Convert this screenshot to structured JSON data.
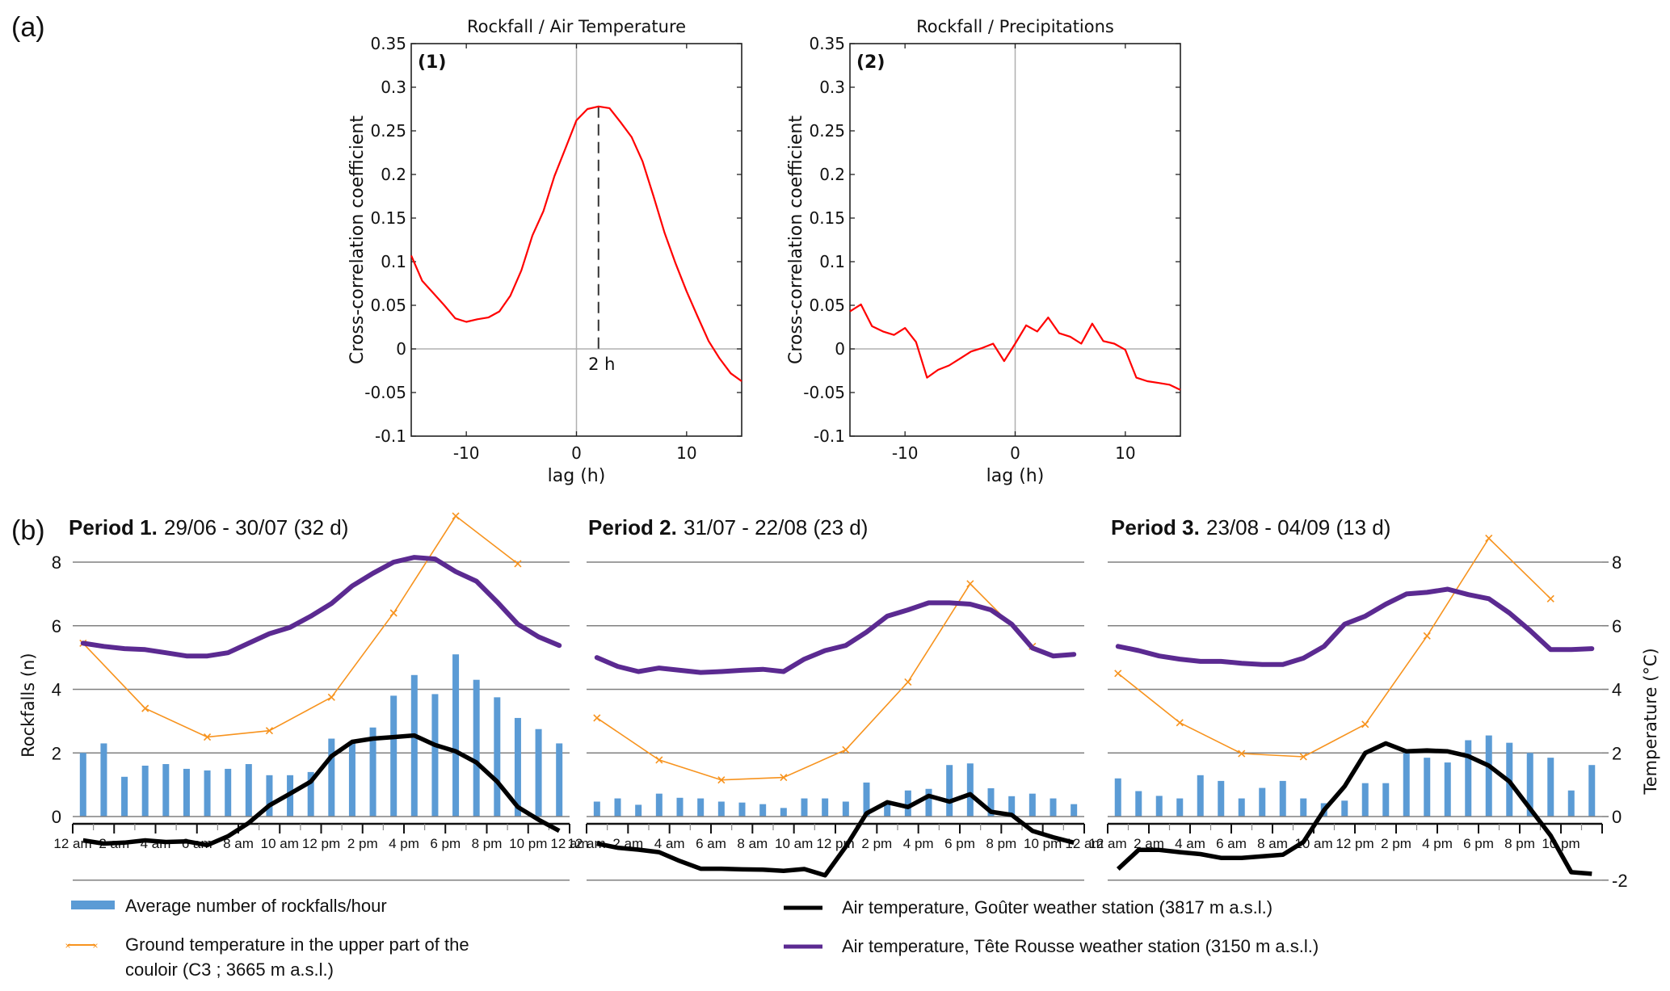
{
  "figure": {
    "panel_a_label": "(a)",
    "panel_b_label": "(b)"
  },
  "chart_data": [
    {
      "id": "xcorr-air-temperature",
      "type": "line",
      "title": "Rockfall / Air Temperature",
      "tag": "(1)",
      "xlabel": "lag (h)",
      "ylabel": "Cross-correlation coefficient",
      "xlim": [
        -15,
        15
      ],
      "ylim": [
        -0.1,
        0.35
      ],
      "xticks": [
        -10,
        0,
        10
      ],
      "xtick_labels": [
        "-10",
        "0",
        "10"
      ],
      "yticks": [
        -0.1,
        -0.05,
        0,
        0.05,
        0.1,
        0.15,
        0.2,
        0.25,
        0.3,
        0.35
      ],
      "ytick_labels": [
        "-0.1",
        "-0.05",
        "0",
        "0.05",
        "0.1",
        "0.15",
        "0.2",
        "0.25",
        "0.3",
        "0.35"
      ],
      "color": "#ff0000",
      "x": [
        -15,
        -14,
        -13,
        -12,
        -11,
        -10,
        -9,
        -8,
        -7,
        -6,
        -5,
        -4,
        -3,
        -2,
        -1,
        0,
        1,
        2,
        3,
        4,
        5,
        6,
        7,
        8,
        9,
        10,
        11,
        12,
        13,
        14,
        15
      ],
      "y": [
        0.107,
        0.078,
        0.064,
        0.05,
        0.035,
        0.031,
        0.034,
        0.036,
        0.043,
        0.061,
        0.09,
        0.13,
        0.158,
        0.198,
        0.23,
        0.262,
        0.275,
        0.278,
        0.276,
        0.26,
        0.243,
        0.215,
        0.175,
        0.133,
        0.098,
        0.066,
        0.037,
        0.009,
        -0.011,
        -0.028,
        -0.037
      ],
      "annotation": {
        "x": 2,
        "label": "2 h"
      }
    },
    {
      "id": "xcorr-precipitations",
      "type": "line",
      "title": "Rockfall / Precipitations",
      "tag": "(2)",
      "xlabel": "lag (h)",
      "ylabel": "Cross-correlation coefficient",
      "xlim": [
        -15,
        15
      ],
      "ylim": [
        -0.1,
        0.35
      ],
      "xticks": [
        -10,
        0,
        10
      ],
      "xtick_labels": [
        "-10",
        "0",
        "10"
      ],
      "yticks": [
        -0.1,
        -0.05,
        0,
        0.05,
        0.1,
        0.15,
        0.2,
        0.25,
        0.3,
        0.35
      ],
      "ytick_labels": [
        "-0.1",
        "-0.05",
        "0",
        "0.05",
        "0.1",
        "0.15",
        "0.2",
        "0.25",
        "0.3",
        "0.35"
      ],
      "color": "#ff0000",
      "x": [
        -15,
        -14,
        -13,
        -12,
        -11,
        -10,
        -9,
        -8,
        -7,
        -6,
        -5,
        -4,
        -3,
        -2,
        -1,
        0,
        1,
        2,
        3,
        4,
        5,
        6,
        7,
        8,
        9,
        10,
        11,
        12,
        13,
        14,
        15
      ],
      "y": [
        0.043,
        0.051,
        0.026,
        0.02,
        0.016,
        0.024,
        0.008,
        -0.033,
        -0.024,
        -0.019,
        -0.011,
        -0.003,
        0.001,
        0.006,
        -0.014,
        0.006,
        0.027,
        0.02,
        0.036,
        0.018,
        0.014,
        0.006,
        0.029,
        0.009,
        0.006,
        -0.001,
        -0.033,
        -0.037,
        -0.039,
        -0.041,
        -0.047
      ]
    },
    {
      "id": "period-1",
      "type": "bar+line",
      "title_bold": "Period 1.",
      "title_rest": "29/06 - 30/07 (32 d)",
      "ylabel_left": "Rockfalls (n)",
      "ylim": [
        -2,
        8
      ],
      "yticks": [
        0,
        2,
        4,
        6,
        8
      ],
      "ytick_labels": [
        "0",
        "2",
        "4",
        "6",
        "8"
      ],
      "hours": [
        0,
        1,
        2,
        3,
        4,
        5,
        6,
        7,
        8,
        9,
        10,
        11,
        12,
        13,
        14,
        15,
        16,
        17,
        18,
        19,
        20,
        21,
        22,
        23
      ],
      "xtick_labels": [
        "12 am",
        "2 am",
        "4 am",
        "6 am",
        "8 am",
        "10 am",
        "12 pm",
        "2 pm",
        "4 pm",
        "6 pm",
        "8 pm",
        "10 pm",
        "12 am"
      ],
      "rockfalls_per_hour": [
        2.0,
        2.3,
        1.25,
        1.6,
        1.65,
        1.5,
        1.45,
        1.5,
        1.65,
        1.3,
        1.3,
        1.4,
        2.45,
        2.35,
        2.8,
        3.8,
        4.45,
        3.85,
        5.1,
        4.3,
        3.75,
        3.1,
        2.75,
        2.3
      ],
      "air_temp_gouter": [
        -0.75,
        -0.85,
        -0.82,
        -0.75,
        -0.8,
        -0.78,
        -0.9,
        -0.62,
        -0.2,
        0.35,
        0.72,
        1.1,
        1.9,
        2.35,
        2.45,
        2.5,
        2.55,
        2.25,
        2.05,
        1.7,
        1.1,
        0.3,
        -0.1,
        -0.45
      ],
      "air_temp_tete_rousse": [
        5.45,
        5.35,
        5.28,
        5.25,
        5.15,
        5.05,
        5.05,
        5.15,
        5.45,
        5.75,
        5.95,
        6.3,
        6.7,
        7.25,
        7.65,
        8.0,
        8.15,
        8.1,
        7.7,
        7.4,
        6.75,
        6.05,
        5.65,
        5.38
      ],
      "ground_temp": {
        "hours": [
          0,
          3,
          6,
          9,
          12,
          15,
          18,
          21
        ],
        "values": [
          5.45,
          3.4,
          2.5,
          2.7,
          3.75,
          6.4,
          9.45,
          7.95
        ]
      }
    },
    {
      "id": "period-2",
      "type": "bar+line",
      "title_bold": "Period 2.",
      "title_rest": "31/07 - 22/08 (23 d)",
      "ylim": [
        -2,
        8
      ],
      "yticks": [
        0,
        2,
        4,
        6,
        8
      ],
      "hours": [
        0,
        1,
        2,
        3,
        4,
        5,
        6,
        7,
        8,
        9,
        10,
        11,
        12,
        13,
        14,
        15,
        16,
        17,
        18,
        19,
        20,
        21,
        22,
        23
      ],
      "xtick_labels": [
        "12 am",
        "2 am",
        "4 am",
        "6 am",
        "8 am",
        "10 am",
        "12 pm",
        "2 pm",
        "4 pm",
        "6 pm",
        "8 pm",
        "10 pm",
        "12 am"
      ],
      "rockfalls_per_hour": [
        0.47,
        0.57,
        0.37,
        0.72,
        0.59,
        0.57,
        0.47,
        0.44,
        0.39,
        0.27,
        0.57,
        0.57,
        0.47,
        1.07,
        0.47,
        0.82,
        0.87,
        1.62,
        1.67,
        0.89,
        0.64,
        0.72,
        0.57,
        0.39
      ],
      "air_temp_gouter": [
        -0.85,
        -0.98,
        -1.04,
        -1.12,
        -1.4,
        -1.64,
        -1.64,
        -1.66,
        -1.67,
        -1.71,
        -1.65,
        -1.85,
        -0.95,
        0.1,
        0.45,
        0.3,
        0.65,
        0.47,
        0.7,
        0.15,
        0.05,
        -0.45,
        -0.65,
        -0.82
      ],
      "air_temp_tete_rousse": [
        5.0,
        4.72,
        4.56,
        4.67,
        4.6,
        4.53,
        4.56,
        4.6,
        4.63,
        4.56,
        4.95,
        5.22,
        5.38,
        5.8,
        6.3,
        6.5,
        6.72,
        6.72,
        6.68,
        6.5,
        6.05,
        5.3,
        5.05,
        5.1
      ],
      "ground_temp": {
        "hours": [
          0,
          3,
          6,
          9,
          12,
          15,
          18,
          21
        ],
        "values": [
          3.1,
          1.78,
          1.15,
          1.23,
          2.1,
          4.23,
          7.32,
          5.35
        ]
      }
    },
    {
      "id": "period-3",
      "type": "bar+line",
      "title_bold": "Period 3.",
      "title_rest": "23/08 - 04/09 (13 d)",
      "ylabel_right": "Temperature (°C)",
      "ylim": [
        -2,
        8
      ],
      "yticks_right": [
        -2,
        0,
        2,
        4,
        6,
        8
      ],
      "ytick_labels_right": [
        "-2",
        "0",
        "2",
        "4",
        "6",
        "8"
      ],
      "hours": [
        0,
        1,
        2,
        3,
        4,
        5,
        6,
        7,
        8,
        9,
        10,
        11,
        12,
        13,
        14,
        15,
        16,
        17,
        18,
        19,
        20,
        21,
        22,
        23
      ],
      "xtick_labels": [
        "12 am",
        "2 am",
        "4 am",
        "6 am",
        "8 am",
        "10 am",
        "12 pm",
        "2 pm",
        "4 pm",
        "6 pm",
        "8 pm",
        "10 pm"
      ],
      "rockfalls_per_hour": [
        1.2,
        0.8,
        0.65,
        0.57,
        1.3,
        1.12,
        0.57,
        0.9,
        1.12,
        0.57,
        0.42,
        0.5,
        1.05,
        1.05,
        2.0,
        1.85,
        1.7,
        2.4,
        2.55,
        2.32,
        2.0,
        1.85,
        0.82,
        1.62
      ],
      "air_temp_gouter": [
        -1.65,
        -1.05,
        -1.05,
        -1.12,
        -1.18,
        -1.3,
        -1.3,
        -1.25,
        -1.2,
        -0.8,
        0.2,
        0.95,
        2.0,
        2.3,
        2.05,
        2.08,
        2.05,
        1.9,
        1.6,
        1.1,
        0.25,
        -0.6,
        -1.75,
        -1.8
      ],
      "air_temp_tete_rousse": [
        5.35,
        5.22,
        5.05,
        4.95,
        4.88,
        4.88,
        4.82,
        4.78,
        4.78,
        4.98,
        5.35,
        6.05,
        6.3,
        6.68,
        7.0,
        7.05,
        7.15,
        6.98,
        6.85,
        6.4,
        5.85,
        5.25,
        5.25,
        5.28
      ],
      "ground_temp": {
        "hours": [
          0,
          3,
          6,
          9,
          12,
          15,
          18,
          21
        ],
        "values": [
          4.5,
          2.95,
          1.98,
          1.88,
          2.9,
          5.68,
          8.75,
          6.85
        ]
      }
    }
  ],
  "legend": [
    {
      "key": "bars",
      "label": "Average number of rockfalls/hour",
      "color": "#5b9bd5"
    },
    {
      "key": "ground",
      "label_line1": "Ground temperature in the upper part of the",
      "label_line2": "couloir (C3 ; 3665 m a.s.l.)",
      "color": "#f7931e"
    },
    {
      "key": "gouter",
      "label": "Air temperature, Goûter weather station (3817 m a.s.l.)",
      "color": "#000000"
    },
    {
      "key": "tete",
      "label": "Air temperature, Tête Rousse weather station (3150 m a.s.l.)",
      "color": "#5b2a91"
    }
  ],
  "colors": {
    "xcorr_line": "#ff0000",
    "bars": "#5b9bd5",
    "ground": "#f7931e",
    "gouter": "#000000",
    "tete": "#5b2a91",
    "grid": "#808080",
    "zero_line": "#b0b0b0"
  }
}
